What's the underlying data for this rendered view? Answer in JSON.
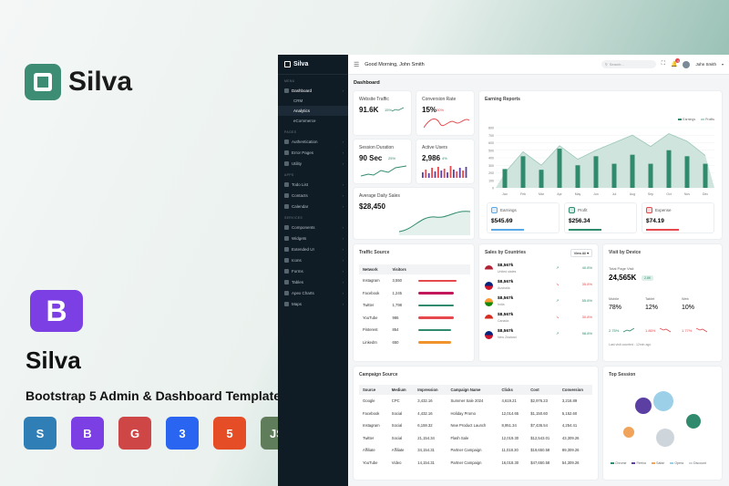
{
  "promo": {
    "brand": "Silva",
    "brand2": "Silva",
    "tagline": "Bootstrap 5 Admin & Dashboard Template",
    "bootstrap_letter": "B",
    "tech": [
      {
        "name": "sass-icon",
        "color": "#2f7fb6",
        "glyph": "S"
      },
      {
        "name": "bootstrap-icon",
        "color": "#7b3fe4",
        "glyph": "B"
      },
      {
        "name": "gulp-icon",
        "color": "#cf4647",
        "glyph": "G"
      },
      {
        "name": "css3-icon",
        "color": "#2965f1",
        "glyph": "3"
      },
      {
        "name": "html5-icon",
        "color": "#e44d26",
        "glyph": "5"
      },
      {
        "name": "nodejs-icon",
        "color": "#5f7d5b",
        "glyph": "JS"
      }
    ]
  },
  "app": {
    "brand": "Silva",
    "greeting": "Good Morning, John Smith",
    "search_placeholder": "Search...",
    "notif_count": "4",
    "user": "John Smith",
    "page_title": "Dashboard",
    "sidebar": [
      {
        "type": "sec",
        "label": "MENU"
      },
      {
        "type": "item",
        "label": "Dashboard",
        "active": true
      },
      {
        "type": "sub",
        "label": "CRM"
      },
      {
        "type": "sub",
        "label": "Analytics",
        "active": true
      },
      {
        "type": "sub",
        "label": "eCommerce"
      },
      {
        "type": "sec",
        "label": "PAGES"
      },
      {
        "type": "item",
        "label": "Authentication"
      },
      {
        "type": "item",
        "label": "Error Pages"
      },
      {
        "type": "item",
        "label": "Utility"
      },
      {
        "type": "sec",
        "label": "APPS"
      },
      {
        "type": "item",
        "label": "Todo List"
      },
      {
        "type": "item",
        "label": "Contacts"
      },
      {
        "type": "item",
        "label": "Calendar"
      },
      {
        "type": "sec",
        "label": "SERVICES"
      },
      {
        "type": "item",
        "label": "Components"
      },
      {
        "type": "item",
        "label": "Widgets"
      },
      {
        "type": "item",
        "label": "Extended UI"
      },
      {
        "type": "item",
        "label": "Icons"
      },
      {
        "type": "item",
        "label": "Forms"
      },
      {
        "type": "item",
        "label": "Tables"
      },
      {
        "type": "item",
        "label": "Apex Charts"
      },
      {
        "type": "item",
        "label": "Maps"
      }
    ],
    "stats": {
      "website_traffic": {
        "label": "Website Traffic",
        "value": "91.6K",
        "pct": "15%"
      },
      "conversion_rate": {
        "label": "Conversion Rate",
        "value": "15%",
        "pct": "30%"
      },
      "session_duration": {
        "label": "Session Duration",
        "value": "90 Sec",
        "pct": "25%"
      },
      "active_users": {
        "label": "Active Users",
        "value": "2,986",
        "pct": "4%"
      },
      "avg_daily_sales": {
        "label": "Average Daily Sales",
        "value": "$28,450"
      }
    },
    "earning": {
      "title": "Earning Reports",
      "legend": [
        "Earnings",
        "Profits"
      ],
      "chart_data": {
        "type": "bar",
        "categories": [
          "Jan",
          "Feb",
          "Mar",
          "Apr",
          "May",
          "Jun",
          "Jul",
          "Aug",
          "Sep",
          "Oct",
          "Nov",
          "Dec"
        ],
        "ylim": [
          0,
          800
        ],
        "yticks": [
          "800",
          "700",
          "600",
          "500",
          "400",
          "300",
          "200",
          "100",
          "0"
        ],
        "series": [
          {
            "name": "Earnings",
            "values": [
              250,
              420,
              240,
              520,
              300,
              420,
              320,
              440,
              320,
              500,
              420,
              320
            ]
          },
          {
            "name": "Profits",
            "values": [
              200,
              480,
              300,
              560,
              380,
              500,
              600,
              700,
              550,
              720,
              620,
              430
            ]
          }
        ]
      },
      "summary": [
        {
          "label": "Earnings",
          "value": "$545.69",
          "color": "#5aa9e6"
        },
        {
          "label": "Profit",
          "value": "$256.34",
          "color": "#2f8a6e"
        },
        {
          "label": "Expense",
          "value": "$74.19",
          "color": "#e5484d"
        }
      ]
    },
    "traffic": {
      "title": "Traffic Source",
      "headers": [
        "Network",
        "Visitors"
      ],
      "rows": [
        {
          "name": "Instagram",
          "visitors": "3,550",
          "pct": 0.75,
          "color": "#e5484d"
        },
        {
          "name": "Facebook",
          "visitors": "1,245",
          "pct": 0.7,
          "color": "#c2185b"
        },
        {
          "name": "Twitter",
          "visitors": "1,798",
          "pct": 0.7,
          "color": "#2f8a6e"
        },
        {
          "name": "YouTube",
          "visitors": "986",
          "pct": 0.7,
          "color": "#e5484d"
        },
        {
          "name": "Pinterest",
          "visitors": "854",
          "pct": 0.65,
          "color": "#2f8a6e"
        },
        {
          "name": "LinkedIn",
          "visitors": "650",
          "pct": 0.65,
          "color": "#f0932b"
        }
      ]
    },
    "countries": {
      "title": "Sales by Countries",
      "filter": "View All",
      "rows": [
        {
          "value": "$8,567k",
          "name": "United states",
          "pct": "40.8%",
          "trend": "up"
        },
        {
          "value": "$8,567k",
          "name": "Australia",
          "pct": "35.8%",
          "trend": "down"
        },
        {
          "value": "$8,567k",
          "name": "India",
          "pct": "55.8%",
          "trend": "up"
        },
        {
          "value": "$8,567k",
          "name": "Canada",
          "pct": "30.8%",
          "trend": "down"
        },
        {
          "value": "$8,567k",
          "name": "New Zealand",
          "pct": "98.8%",
          "trend": "up"
        }
      ]
    },
    "device": {
      "title": "Visit by Device",
      "total_label": "Total Page Visit",
      "total": "24,565K",
      "badge": "2.8K",
      "cols": [
        {
          "label": "Mobile",
          "value": "78%",
          "delta": "2.75%",
          "trend": "up"
        },
        {
          "label": "Tablet",
          "value": "12%",
          "delta": "1.86%",
          "trend": "down"
        },
        {
          "label": "Web",
          "value": "10%",
          "delta": "1.77%",
          "trend": "down"
        }
      ],
      "footer": "Last visit counted : 12min ago"
    },
    "campaign": {
      "title": "Campaign Source",
      "headers": [
        "Source",
        "Medium",
        "Impression",
        "Campaign Name",
        "Clicks",
        "Cost",
        "Conversion"
      ],
      "rows": [
        [
          "Google",
          "CPC",
          "3,432.16",
          "Summer Sale 2024",
          "4,619.21",
          "$2,976.23",
          "3,216.89"
        ],
        [
          "Facebook",
          "Social",
          "4,432.16",
          "Holiday Promo",
          "12,014.65",
          "$1,150.60",
          "5,152.60"
        ],
        [
          "Instagram",
          "Social",
          "6,159.32",
          "New Product Launch",
          "8,951.34",
          "$7,436.54",
          "4,254.41"
        ],
        [
          "Twitter",
          "Social",
          "21,154.34",
          "Flash Sale",
          "12,019.30",
          "$12,543.01",
          "43,309.26"
        ],
        [
          "Affiliate",
          "Affiliate",
          "34,154.31",
          "Partner Campaign",
          "11,018.30",
          "$19,650.58",
          "89,309.26"
        ],
        [
          "YouTube",
          "Video",
          "14,154.31",
          "Partner Campaign",
          "16,018.30",
          "$47,650.58",
          "54,309.26"
        ]
      ]
    },
    "topsession": {
      "title": "Top Session",
      "legend": [
        {
          "label": "Chrome",
          "color": "#2f8a6e"
        },
        {
          "label": "Firefox",
          "color": "#5b3fa3"
        },
        {
          "label": "Safari",
          "color": "#f0a35a"
        },
        {
          "label": "Opera",
          "color": "#9ccfe8"
        },
        {
          "label": "Discount",
          "color": "#cfd6db"
        }
      ]
    }
  }
}
